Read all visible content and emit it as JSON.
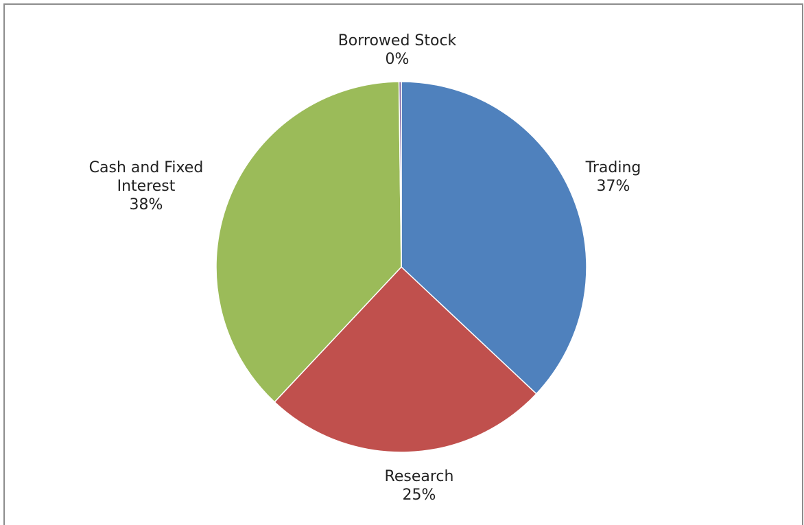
{
  "chart_data": {
    "type": "pie",
    "title": "",
    "start_angle_deg": -90,
    "direction": "clockwise",
    "slices": [
      {
        "name": "Trading",
        "label": "Trading",
        "pct_label": "37%",
        "value": 37.0,
        "color": "#4f81bd"
      },
      {
        "name": "Research",
        "label": "Research",
        "pct_label": "25%",
        "value": 25.0,
        "color": "#c0504d"
      },
      {
        "name": "Cash and Fixed Interest",
        "label": "Cash and Fixed\nInterest",
        "pct_label": "38%",
        "value": 37.8,
        "color": "#9bbb59"
      },
      {
        "name": "Borrowed Stock",
        "label": "Borrowed Stock",
        "pct_label": "0%",
        "value": 0.2,
        "color": "#8064a2"
      }
    ],
    "legend": "none"
  }
}
